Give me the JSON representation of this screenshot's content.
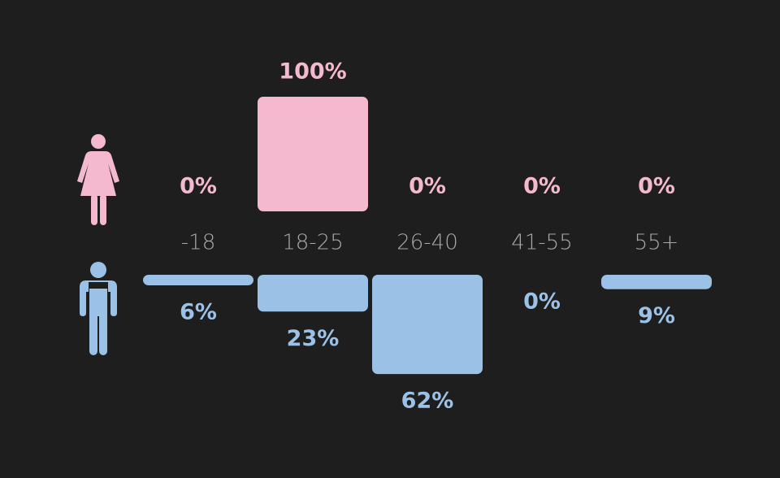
{
  "chart_data": {
    "type": "diverging-bar",
    "categories": [
      "-18",
      "18-25",
      "26-40",
      "41-55",
      "55+"
    ],
    "series": [
      {
        "color": "#f4b9cf",
        "values": [
          0,
          100,
          0,
          0,
          0
        ],
        "value_labels": [
          "0%",
          "100%",
          "0%",
          "0%",
          "0%"
        ]
      },
      {
        "color": "#9bc2e6",
        "values": [
          6,
          23,
          62,
          0,
          9
        ],
        "value_labels": [
          "6%",
          "23%",
          "62%",
          "0%",
          "9%"
        ]
      }
    ]
  }
}
